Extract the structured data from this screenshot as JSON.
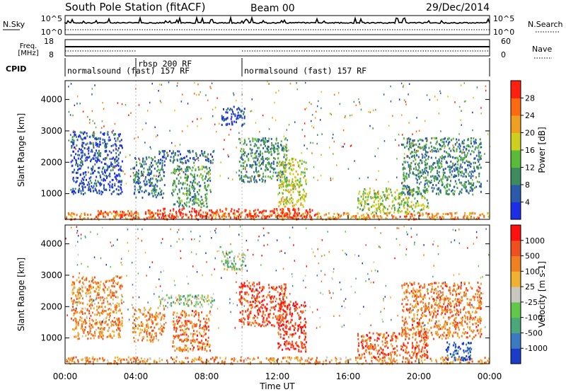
{
  "header": {
    "station": "South Pole Station (fitACF)",
    "beam": "Beam 00",
    "date": "29/Dec/2014"
  },
  "aux_panels": {
    "nsky_label": "N.Sky",
    "nsky_ticks": [
      "10^5",
      "10^0"
    ],
    "nsearch_label": "N.Search",
    "nsearch_ticks": [
      "10^5",
      "10^0"
    ],
    "freq_label": [
      "Freq.",
      "[MHz]"
    ],
    "freq_ticks": [
      "18",
      "8"
    ],
    "nave_label": "Nave",
    "nave_ticks": [
      "60",
      "0"
    ],
    "cpid_label": "CPID",
    "cpid_segments": [
      {
        "start": 0,
        "end": 4.0,
        "label": "normalsound (fast) 157 RF"
      },
      {
        "start": 4.0,
        "end": 10.0,
        "label": "rbsp 200 RF"
      },
      {
        "start": 10.0,
        "end": 24.0,
        "label": "normalsound (fast) 157 RF"
      }
    ]
  },
  "chart_data": [
    {
      "type": "heatmap",
      "name": "power-panel",
      "ylabel": "Slant Range [km]",
      "xlabel": "Time UT",
      "x_ticks": [
        "00:00",
        "04:00",
        "08:00",
        "12:00",
        "16:00",
        "20:00",
        "00:00"
      ],
      "xlim": [
        0,
        24
      ],
      "ylim": [
        180,
        4600
      ],
      "y_ticks": [
        1000,
        2000,
        3000,
        4000
      ],
      "colorbar_label": "Power [dB]",
      "colorbar_ticks": [
        "4",
        "8",
        "12",
        "16",
        "20",
        "24",
        "28"
      ],
      "colorbar_colors": [
        "#1e2ee6",
        "#2a5aa8",
        "#3e8c5e",
        "#5aba3a",
        "#cfcf20",
        "#f0a020",
        "#ff6a10",
        "#ff2010"
      ],
      "regions": [
        {
          "t0": 0,
          "t1": 24,
          "r0": 200,
          "r1": 420,
          "value": 0.75
        },
        {
          "t0": 4.5,
          "t1": 14,
          "r0": 250,
          "r1": 560,
          "value": 0.95
        },
        {
          "t0": 1.6,
          "t1": 4.2,
          "r0": 250,
          "r1": 480,
          "value": 0.9
        },
        {
          "t0": 3.8,
          "t1": 5.6,
          "r0": 900,
          "r1": 2200,
          "value": 0.25
        },
        {
          "t0": 5.2,
          "t1": 8.4,
          "r0": 2000,
          "r1": 2400,
          "value": 0.2
        },
        {
          "t0": 6.0,
          "t1": 8.2,
          "r0": 600,
          "r1": 1900,
          "value": 0.35
        },
        {
          "t0": 8.8,
          "t1": 10.2,
          "r0": 3200,
          "r1": 3800,
          "value": 0.1
        },
        {
          "t0": 9.8,
          "t1": 12.5,
          "r0": 1400,
          "r1": 2800,
          "value": 0.3
        },
        {
          "t0": 12.0,
          "t1": 13.6,
          "r0": 600,
          "r1": 2200,
          "value": 0.55
        },
        {
          "t0": 16.5,
          "t1": 20.5,
          "r0": 400,
          "r1": 1200,
          "value": 0.5
        },
        {
          "t0": 19.0,
          "t1": 23.5,
          "r0": 1000,
          "r1": 2800,
          "value": 0.3
        },
        {
          "t0": 0.3,
          "t1": 3.2,
          "r0": 1000,
          "r1": 3000,
          "value": 0.15
        }
      ]
    },
    {
      "type": "heatmap",
      "name": "velocity-panel",
      "ylabel": "Slant Range [km]",
      "xlabel": "Time UT",
      "x_ticks": [
        "00:00",
        "04:00",
        "08:00",
        "12:00",
        "16:00",
        "20:00",
        "00:00"
      ],
      "xlim": [
        0,
        24
      ],
      "ylim": [
        180,
        4600
      ],
      "y_ticks": [
        1000,
        2000,
        3000,
        4000
      ],
      "colorbar_label": "Velocity [m s-1]",
      "colorbar_ticks": [
        "1000",
        "500",
        "100",
        "25",
        "-25",
        "-100",
        "-500",
        "-1000"
      ],
      "colorbar_colors": [
        "#1a3cc8",
        "#3b7ac0",
        "#4aa87a",
        "#62c84a",
        "#c8c8c0",
        "#f0b030",
        "#f08020",
        "#f05020",
        "#ff1010"
      ],
      "regions": [
        {
          "t0": 0,
          "t1": 24,
          "r0": 200,
          "r1": 420,
          "value": 0.7
        },
        {
          "t0": 3.8,
          "t1": 5.6,
          "r0": 900,
          "r1": 2000,
          "value": 0.7
        },
        {
          "t0": 5.2,
          "t1": 8.4,
          "r0": 2000,
          "r1": 2400,
          "value": 0.45
        },
        {
          "t0": 6.0,
          "t1": 8.2,
          "r0": 600,
          "r1": 1900,
          "value": 0.75
        },
        {
          "t0": 8.8,
          "t1": 10.2,
          "r0": 3200,
          "r1": 3800,
          "value": 0.45
        },
        {
          "t0": 9.8,
          "t1": 12.5,
          "r0": 1400,
          "r1": 2800,
          "value": 0.85
        },
        {
          "t0": 12.0,
          "t1": 13.6,
          "r0": 600,
          "r1": 2200,
          "value": 0.88
        },
        {
          "t0": 16.5,
          "t1": 20.5,
          "r0": 400,
          "r1": 1200,
          "value": 0.8
        },
        {
          "t0": 19.0,
          "t1": 23.5,
          "r0": 1000,
          "r1": 2800,
          "value": 0.75
        },
        {
          "t0": 21.5,
          "t1": 23.0,
          "r0": 300,
          "r1": 900,
          "value": 0.1
        },
        {
          "t0": 0.3,
          "t1": 3.2,
          "r0": 1000,
          "r1": 3000,
          "value": 0.7
        }
      ]
    }
  ]
}
